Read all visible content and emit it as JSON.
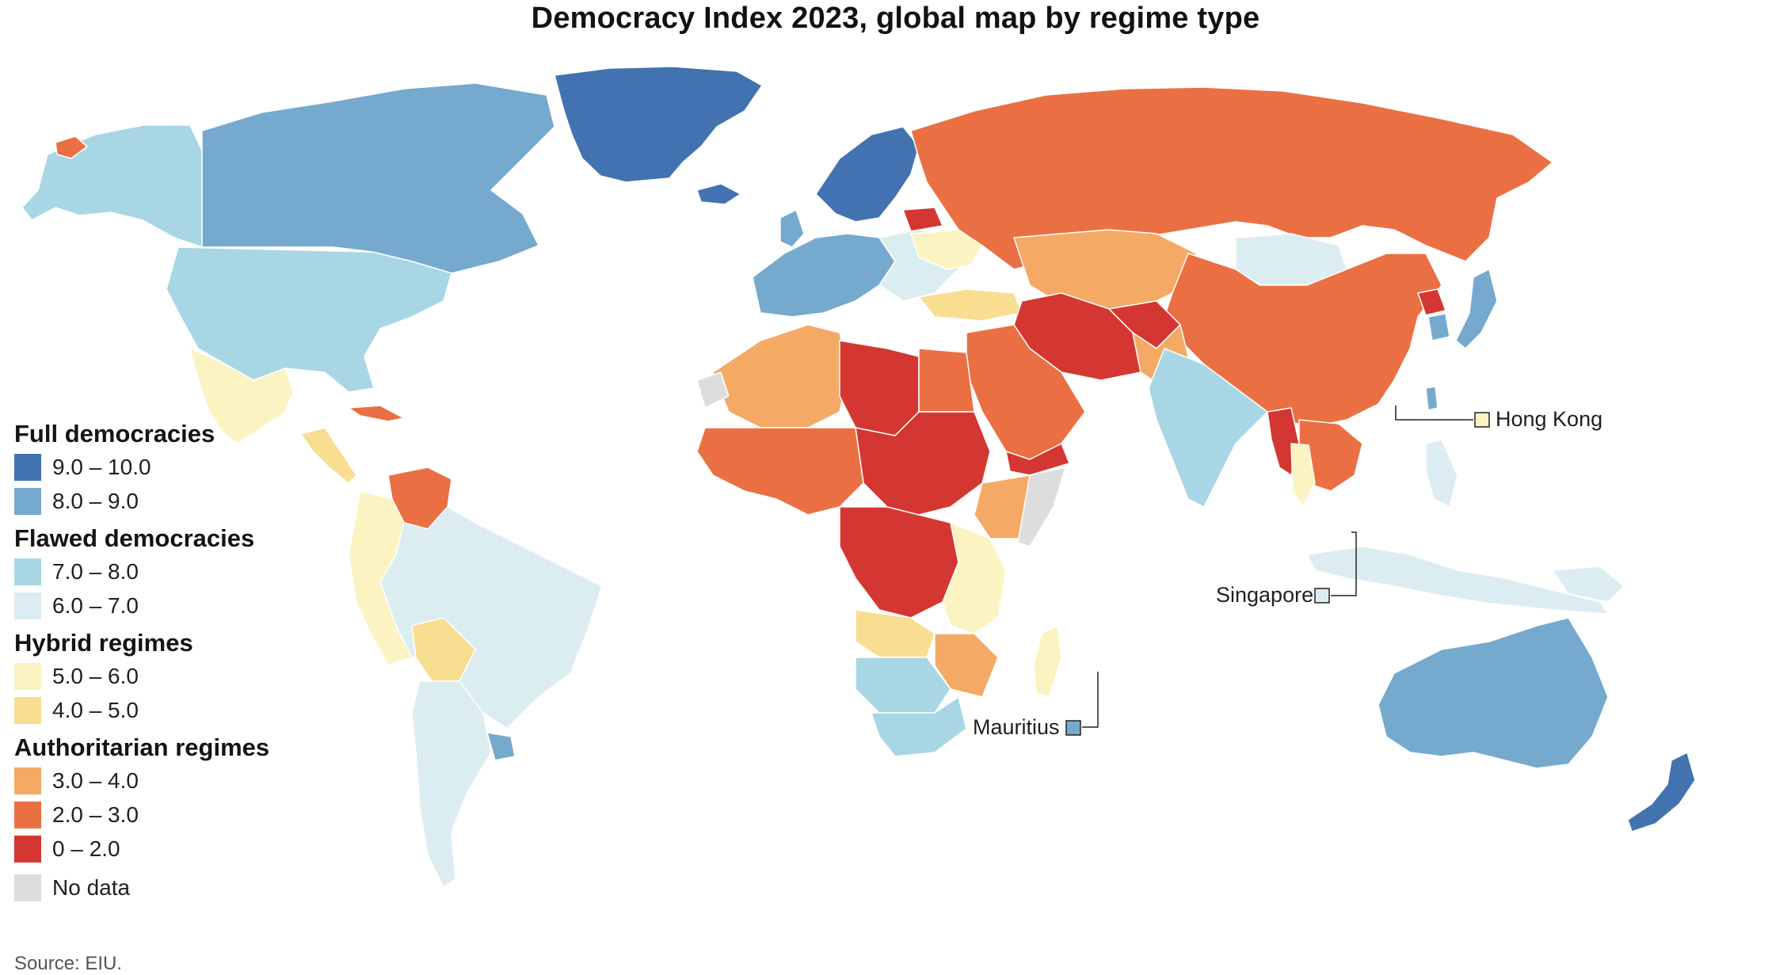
{
  "title": "Democracy Index 2023, global map by regime type",
  "source": "Source: EIU.",
  "colors": {
    "full_high": "#4273b0",
    "full_low": "#76a9ce",
    "flawed_high": "#a9d6e4",
    "flawed_low": "#dcedf2",
    "hybrid_high": "#fbf4c2",
    "hybrid_low": "#f9dd90",
    "auth_high": "#f4a965",
    "auth_mid": "#ea7043",
    "auth_low": "#d43731",
    "no_data": "#dddddd",
    "water": "#ffffff",
    "border": "#ffffff"
  },
  "legend": [
    {
      "group": "Full democracies",
      "entries": [
        {
          "label": "9.0 – 10.0",
          "color": "#4273b0"
        },
        {
          "label": "8.0 – 9.0",
          "color": "#76a9ce"
        }
      ]
    },
    {
      "group": "Flawed democracies",
      "entries": [
        {
          "label": "7.0 – 8.0",
          "color": "#a9d6e4"
        },
        {
          "label": "6.0 – 7.0",
          "color": "#dcedf2"
        }
      ]
    },
    {
      "group": "Hybrid regimes",
      "entries": [
        {
          "label": "5.0 – 6.0",
          "color": "#fbf4c2"
        },
        {
          "label": "4.0 – 5.0",
          "color": "#f9dd90"
        }
      ]
    },
    {
      "group": "Authoritarian regimes",
      "entries": [
        {
          "label": "3.0 – 4.0",
          "color": "#f4a965"
        },
        {
          "label": "2.0 – 3.0",
          "color": "#ea7043"
        },
        {
          "label": "0 – 2.0",
          "color": "#d43731"
        }
      ]
    },
    {
      "group": "",
      "entries": [
        {
          "label": "No data",
          "color": "#dddddd"
        }
      ]
    }
  ],
  "callouts": {
    "hong_kong": {
      "label": "Hong Kong",
      "color": "#fbf4c2"
    },
    "singapore": {
      "label": "Singapore",
      "color": "#dcedf2"
    },
    "mauritius": {
      "label": "Mauritius",
      "color": "#76a9ce"
    }
  }
}
